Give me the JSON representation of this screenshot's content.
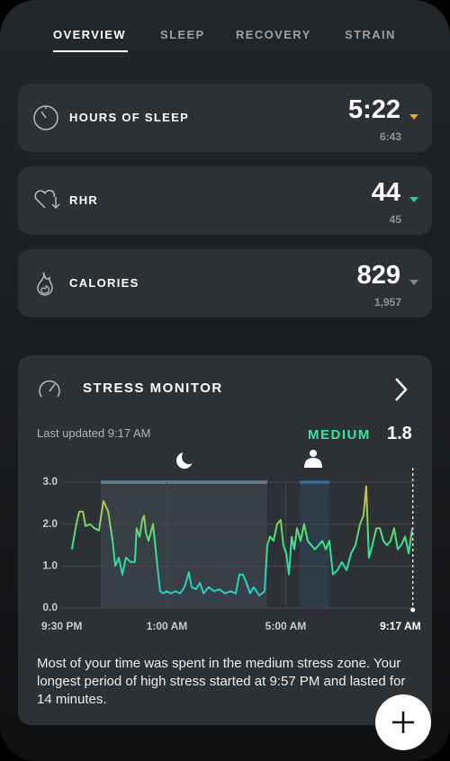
{
  "tabs": [
    "OVERVIEW",
    "SLEEP",
    "RECOVERY",
    "STRAIN"
  ],
  "metrics": [
    {
      "label": "HOURS OF SLEEP",
      "value": "5:22",
      "baseline": "6:43"
    },
    {
      "label": "RHR",
      "value": "44",
      "baseline": "45"
    },
    {
      "label": "CALORIES",
      "value": "829",
      "baseline": "1,957"
    }
  ],
  "stress": {
    "title": "STRESS MONITOR",
    "updated": "Last updated 9:17 AM",
    "level": "MEDIUM",
    "score": "1.8",
    "summary": "Most of your time was spent in the medium stress zone. Your longest period of high stress started at 9:57 PM and lasted for 14 minutes.",
    "chart_data": {
      "type": "line",
      "xlim": [
        21.5,
        33.28
      ],
      "xticks": [
        {
          "value": 21.5,
          "label": "9:30 PM"
        },
        {
          "value": 25,
          "label": "1:00 AM"
        },
        {
          "value": 29,
          "label": "5:00 AM"
        },
        {
          "value": 33.28,
          "label": "9:17 AM"
        }
      ],
      "ylim": [
        0,
        3
      ],
      "yticks": [
        {
          "value": 0,
          "label": "0.0"
        },
        {
          "value": 1,
          "label": "1.0"
        },
        {
          "value": 2,
          "label": "2.0"
        },
        {
          "value": 3,
          "label": "3.0"
        }
      ],
      "grid": true,
      "colors": [
        "#26c4d8",
        "#3ae38a",
        "#f2b52c"
      ],
      "periods": [
        {
          "x": [
            22.77,
            28.38
          ],
          "color": "#8aa8c8"
        },
        {
          "x": [
            29.47,
            30.47
          ],
          "color": "#2b8fd6"
        }
      ],
      "x": [
        21.8,
        21.95,
        22.05,
        22.17,
        22.26,
        22.41,
        22.56,
        22.71,
        22.86,
        23.02,
        23.17,
        23.26,
        23.38,
        23.5,
        23.62,
        23.77,
        23.92,
        23.98,
        24.08,
        24.17,
        24.23,
        24.29,
        24.38,
        24.53,
        24.68,
        24.77,
        24.89,
        24.98,
        25.14,
        25.29,
        25.44,
        25.59,
        25.74,
        25.83,
        25.98,
        26.11,
        26.23,
        26.41,
        26.59,
        26.77,
        26.95,
        27.14,
        27.32,
        27.44,
        27.56,
        27.68,
        27.8,
        27.92,
        28.11,
        28.29,
        28.38,
        28.47,
        28.59,
        28.71,
        28.83,
        28.92,
        29.02,
        29.11,
        29.2,
        29.29,
        29.38,
        29.5,
        29.62,
        29.74,
        29.86,
        29.98,
        30.11,
        30.23,
        30.35,
        30.47,
        30.59,
        30.74,
        30.89,
        31.05,
        31.2,
        31.35,
        31.5,
        31.62,
        31.71,
        31.8,
        31.92,
        32.05,
        32.17,
        32.29,
        32.41,
        32.53,
        32.65,
        32.77,
        32.89,
        33.02,
        33.14,
        33.26
      ],
      "values": [
        1.4,
        2.0,
        2.3,
        2.3,
        1.95,
        2.0,
        1.9,
        1.85,
        2.55,
        2.3,
        1.6,
        1.0,
        1.2,
        0.8,
        1.2,
        1.1,
        1.1,
        1.9,
        1.7,
        2.1,
        2.2,
        1.8,
        1.6,
        2.0,
        1.0,
        0.4,
        0.35,
        0.4,
        0.35,
        0.4,
        0.35,
        0.5,
        0.85,
        0.5,
        0.45,
        0.6,
        0.35,
        0.5,
        0.4,
        0.45,
        0.35,
        0.4,
        0.35,
        0.8,
        0.8,
        0.6,
        0.35,
        0.5,
        0.3,
        0.4,
        1.5,
        1.7,
        1.6,
        2.0,
        2.1,
        1.5,
        1.3,
        0.8,
        1.7,
        1.4,
        1.9,
        1.6,
        2.0,
        1.6,
        1.5,
        1.4,
        1.5,
        1.6,
        1.4,
        1.6,
        0.8,
        0.9,
        1.1,
        0.9,
        1.3,
        1.5,
        2.0,
        2.2,
        2.9,
        1.2,
        1.5,
        1.9,
        1.9,
        1.6,
        1.5,
        1.6,
        1.9,
        1.4,
        1.5,
        1.7,
        1.3,
        1.9
      ]
    }
  }
}
